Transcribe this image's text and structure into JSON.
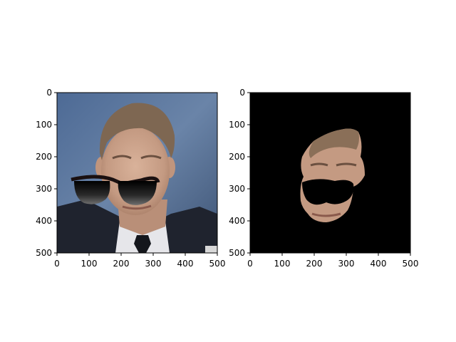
{
  "figure": {
    "background": "#ffffff",
    "panels": [
      {
        "id": "left",
        "content": "face-photo-with-sunglasses",
        "x_ticks": [
          "0",
          "100",
          "200",
          "300",
          "400",
          "500"
        ],
        "y_ticks": [
          "0",
          "100",
          "200",
          "300",
          "400",
          "500"
        ],
        "xlim": [
          0,
          500
        ],
        "ylim": [
          500,
          0
        ]
      },
      {
        "id": "right",
        "content": "masked-face-on-black",
        "x_ticks": [
          "0",
          "100",
          "200",
          "300",
          "400",
          "500"
        ],
        "y_ticks": [
          "0",
          "100",
          "200",
          "300",
          "400",
          "500"
        ],
        "xlim": [
          0,
          500
        ],
        "ylim": [
          500,
          0
        ]
      }
    ]
  },
  "colors": {
    "photo_background": "#5a7399",
    "mask_background": "#000000",
    "skin": "#c9a08a",
    "hair": "#7e6752",
    "suit": "#1f232e",
    "shirt": "#e6e6ea",
    "tie": "#14161c"
  }
}
